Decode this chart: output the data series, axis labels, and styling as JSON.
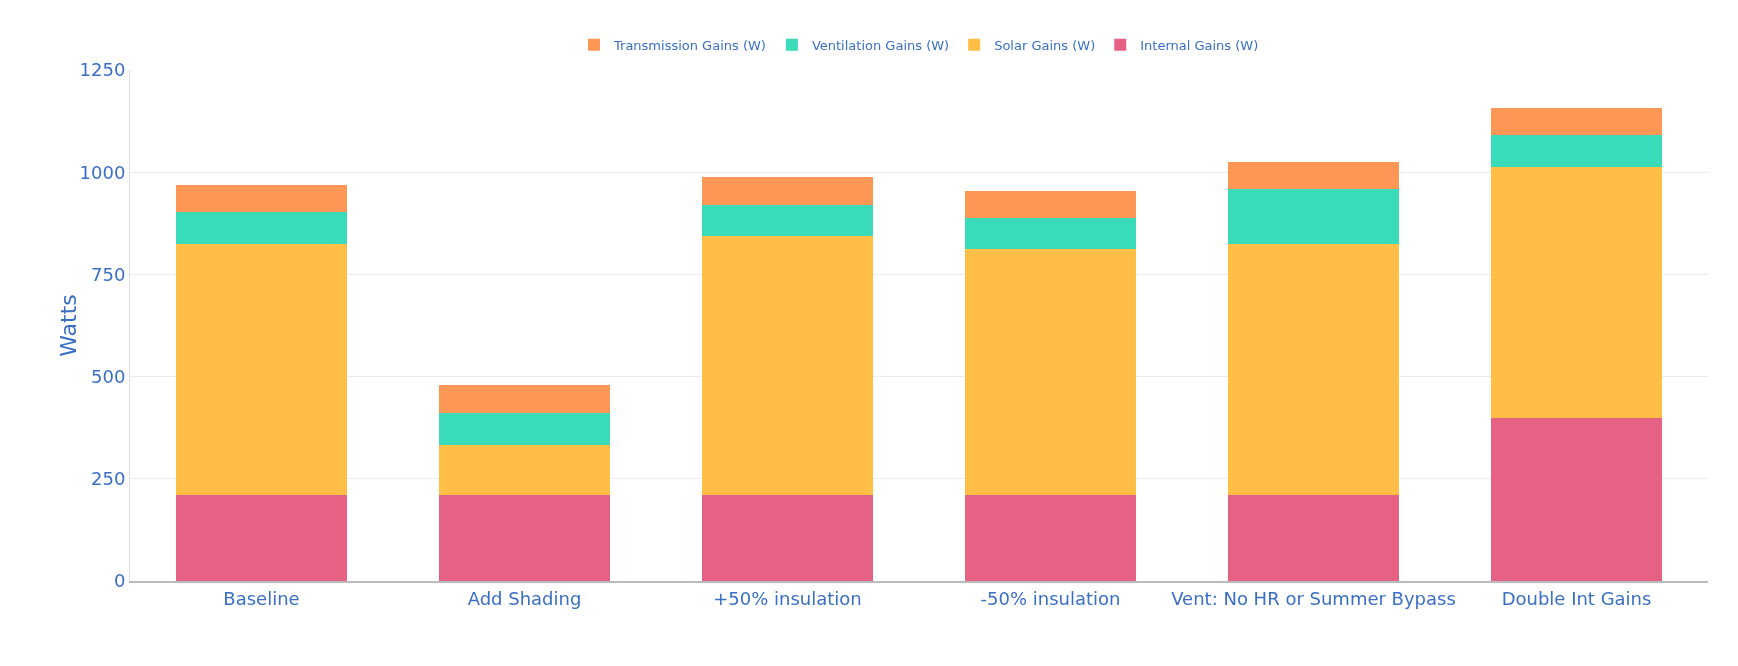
{
  "chart_data": {
    "type": "bar",
    "stacked": true,
    "ylabel": "Watts",
    "categories": [
      "Baseline",
      "Add Shading",
      "+50% insulation",
      "-50% insulation",
      "Vent: No HR or Summer Bypass",
      "Double Int Gains"
    ],
    "series": [
      {
        "name": "Internal Gains (W)",
        "color": "#e56285",
        "values": [
          210,
          210,
          210,
          210,
          210,
          398
        ]
      },
      {
        "name": "Solar Gains (W)",
        "color": "#ffbf47",
        "values": [
          614,
          123,
          633,
          601,
          614,
          615
        ]
      },
      {
        "name": "Ventilation Gains (W)",
        "color": "#3adbb8",
        "values": [
          79,
          79,
          77,
          76,
          134,
          79
        ]
      },
      {
        "name": "Transmission Gains (W)",
        "color": "#fe9655",
        "values": [
          66,
          68,
          68,
          68,
          68,
          65
        ]
      }
    ],
    "ylim": [
      0,
      1250
    ],
    "yticks": [
      0,
      250,
      500,
      750,
      1000,
      1250
    ],
    "grid": "y",
    "legend": "top"
  }
}
